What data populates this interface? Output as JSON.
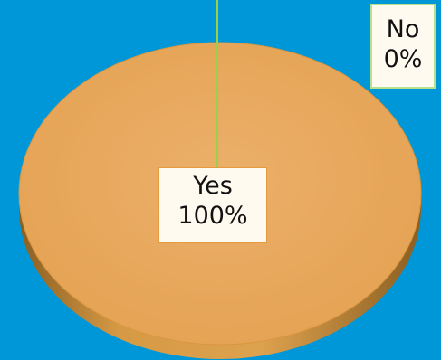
{
  "chart_data": {
    "type": "pie",
    "title": "",
    "categories": [
      "Yes",
      "No"
    ],
    "values": [
      100,
      0
    ],
    "data_labels": [
      {
        "category": "Yes",
        "percent": "100%"
      },
      {
        "category": "No",
        "percent": "0%"
      }
    ],
    "colors": [
      "#e9a85c",
      "#9ad14b"
    ],
    "background": "#0097d8",
    "legend": "none"
  }
}
